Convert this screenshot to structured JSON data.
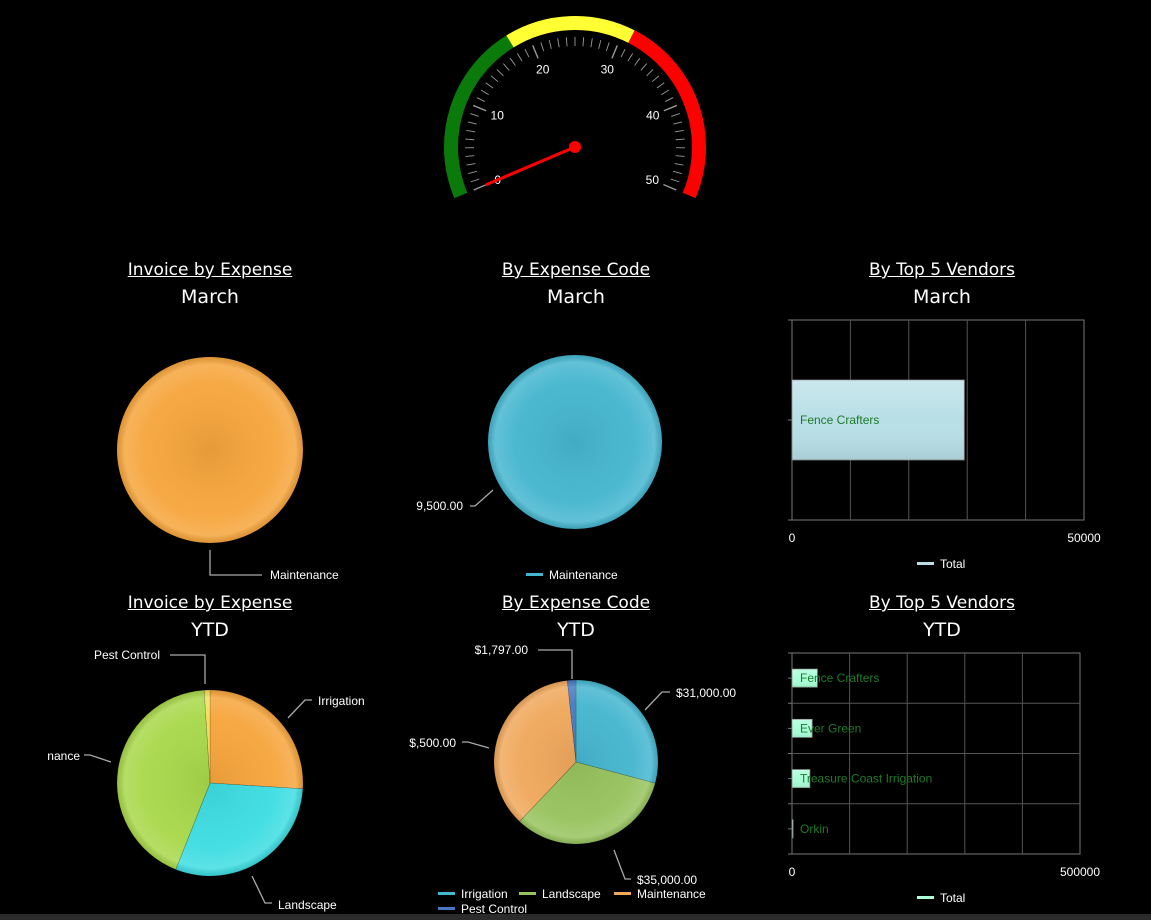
{
  "gauge": {
    "min": 0,
    "max": 50,
    "value": 0,
    "bands": [
      {
        "from": 0,
        "to": 18,
        "color": "#0a7a0a"
      },
      {
        "from": 18,
        "to": 31,
        "color": "#ffff33"
      },
      {
        "from": 31,
        "to": 50,
        "color": "#ff0000"
      }
    ],
    "labels": [
      "0",
      "10",
      "20",
      "30",
      "40",
      "50"
    ],
    "needle_color": "#ff0000"
  },
  "titles": {
    "r1c1": {
      "t1": "Invoice by Expense",
      "t2": "March"
    },
    "r1c2": {
      "t1": "By Expense Code",
      "t2": "March"
    },
    "r1c3": {
      "t1": "By Top 5 Vendors",
      "t2": "March"
    },
    "r2c1": {
      "t1": "Invoice by Expense",
      "t2": "YTD"
    },
    "r2c2": {
      "t1": "By Expense Code",
      "t2": "YTD"
    },
    "r2c3": {
      "t1": "By Top 5 Vendors",
      "t2": "YTD"
    }
  },
  "legends": {
    "r1c2": [
      "Maintenance"
    ],
    "r1c3": [
      "Total"
    ],
    "r2c2": [
      "Irrigation",
      "Landscape",
      "Maintenance",
      "Pest Control"
    ],
    "r2c3": [
      "Total"
    ]
  },
  "chart_data": [
    {
      "id": "pie-invoice-march",
      "type": "pie",
      "slices": [
        {
          "label": "Maintenance",
          "value": 100,
          "color": "#f6a53c"
        }
      ]
    },
    {
      "id": "pie-expense-code-march",
      "type": "pie",
      "slices": [
        {
          "label": "9,500.00",
          "value": 9500,
          "color": "#45b6cf"
        }
      ]
    },
    {
      "id": "bar-vendors-march",
      "type": "bar",
      "orientation": "horizontal",
      "categories": [
        "Fence Crafters"
      ],
      "series": [
        {
          "name": "Total",
          "values": [
            29500
          ]
        }
      ],
      "xlim": [
        0,
        50000
      ],
      "tick_labels": [
        "0",
        "50000"
      ],
      "grid": true,
      "legend": "bottom",
      "bar_color": "#b8dfe6",
      "label_color": "#1f7a2a"
    },
    {
      "id": "pie-invoice-ytd",
      "type": "pie",
      "slices": [
        {
          "label": "Irrigation",
          "value": 26,
          "color": "#f6a53c"
        },
        {
          "label": "Landscape",
          "value": 30,
          "color": "#3ddde2"
        },
        {
          "label": "nance",
          "value": 43,
          "color": "#a8d84a"
        },
        {
          "label": "Pest Control",
          "value": 1,
          "color": "#f0e05a"
        }
      ]
    },
    {
      "id": "pie-expense-code-ytd",
      "type": "pie",
      "slices": [
        {
          "label": "$31,000.00",
          "value": 31000,
          "color": "#45b6cf"
        },
        {
          "label": "$35,000.00",
          "value": 35000,
          "color": "#97c35e"
        },
        {
          "label": "$,500.00",
          "value": 38500,
          "color": "#f0a85c"
        },
        {
          "label": "$1,797.00",
          "value": 1797,
          "color": "#4a78c0"
        }
      ]
    },
    {
      "id": "bar-vendors-ytd",
      "type": "bar",
      "orientation": "horizontal",
      "categories": [
        "Fence Crafters",
        "Ever Green",
        "Treasure Coast Irrigation",
        "Orkin"
      ],
      "series": [
        {
          "name": "Total",
          "values": [
            44000,
            35000,
            31000,
            1800
          ]
        }
      ],
      "xlim": [
        0,
        500000
      ],
      "tick_labels": [
        "0",
        "500000"
      ],
      "grid": true,
      "legend": "bottom",
      "bar_color": "#a8ffd8",
      "label_color": "#1f7a2a"
    }
  ]
}
